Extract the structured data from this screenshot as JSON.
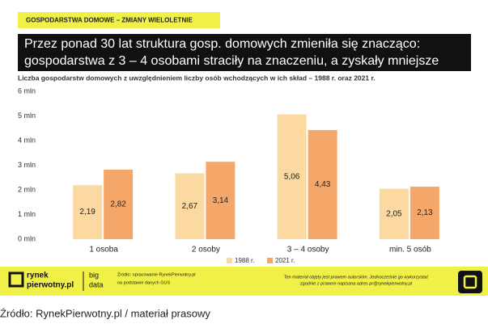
{
  "header": {
    "tag": "GOSPODARSTWA DOMOWE – ZMIANY WIELOLETNIE",
    "title_lines": [
      "Przez ponad 30 lat struktura gosp. domowych zmieniła się znacząco:",
      "gospodarstwa z 3 – 4 osobami straciły na znaczeniu, a zyskały mniejsze"
    ]
  },
  "chart_data": {
    "type": "bar",
    "subtitle": "Liczba gospodarstw domowych z uwzględnieniem liczby osób wchodzących w ich skład – 1988 r. oraz 2021 r.",
    "categories": [
      "1 osoba",
      "2 osoby",
      "3 – 4 osoby",
      "min. 5 osób"
    ],
    "series": [
      {
        "name": "1988 r.",
        "color": "#fbd9a0",
        "values": [
          2.19,
          2.67,
          5.06,
          2.05
        ],
        "value_labels": [
          "2,19",
          "2,67",
          "5,06",
          "2,05"
        ]
      },
      {
        "name": "2021 r.",
        "color": "#f5a76a",
        "values": [
          2.82,
          3.14,
          4.43,
          2.13
        ],
        "value_labels": [
          "2,82",
          "3,14",
          "4,43",
          "2,13"
        ]
      }
    ],
    "ylim": [
      0,
      6
    ],
    "yticks": [
      {
        "value": 0,
        "label": "0 mln"
      },
      {
        "value": 1,
        "label": "1 mln"
      },
      {
        "value": 2,
        "label": "2 mln"
      },
      {
        "value": 3,
        "label": "3 mln"
      },
      {
        "value": 4,
        "label": "4 mln"
      },
      {
        "value": 5,
        "label": "5 mln"
      },
      {
        "value": 6,
        "label": "6 mln"
      }
    ],
    "grid": false
  },
  "footer": {
    "logo_1": "rynek",
    "logo_2": "pierwotny.pl",
    "logo_3": "big",
    "logo_4": "data",
    "source_1": "Źródło: opracowanie RynekPierwotny.pl",
    "source_2": "na podstawie danych GUS",
    "note_1": "Ten materiał objęty jest prawem autorskim. Jednocześnie go wykorzystać",
    "note_2": "zgodnie z prawem napisana adres pr@rynekpierwotny.pl"
  },
  "caption": "Źródło: RynekPierwotny.pl / materiał prasowy"
}
